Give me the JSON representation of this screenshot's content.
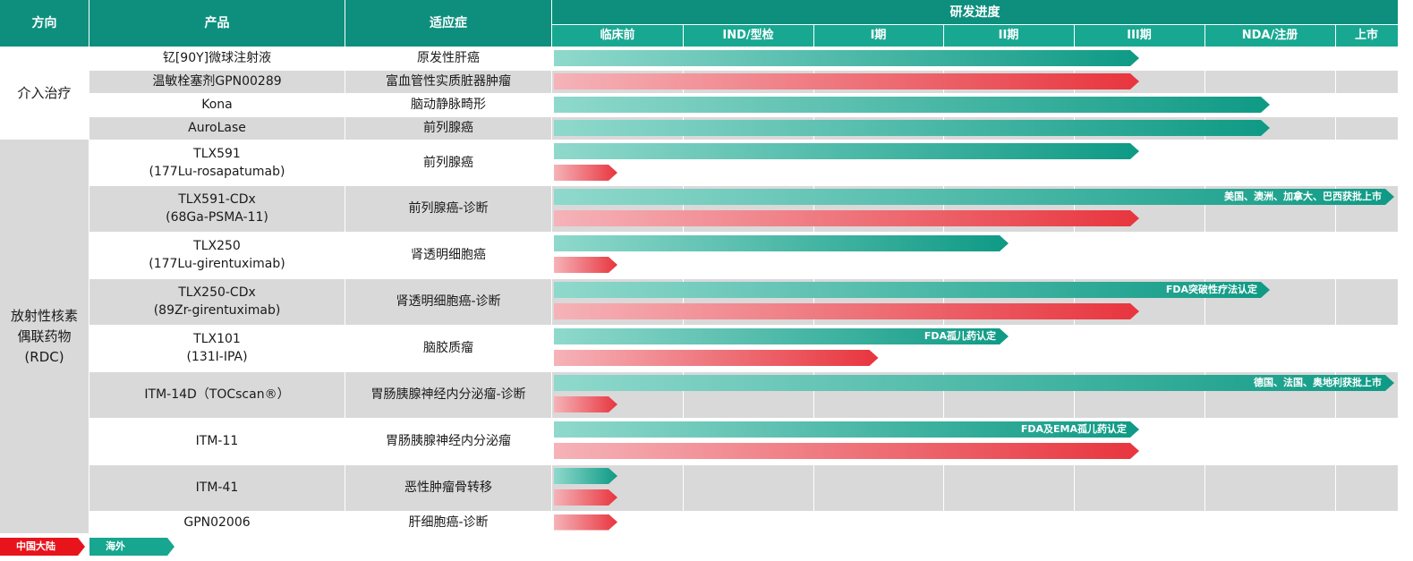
{
  "header": {
    "direction": "方向",
    "product": "产品",
    "indication": "适应症",
    "progress": "研发进度"
  },
  "chart_data": {
    "type": "gantt",
    "phases": [
      "临床前",
      "IND/型检",
      "I期",
      "II期",
      "III期",
      "NDA/注册",
      "上市"
    ],
    "groups": [
      {
        "name": "介入治疗",
        "rows": [
          0,
          1,
          2,
          3
        ]
      },
      {
        "name_lines": [
          "放射性核素",
          "偶联药物",
          "(RDC)"
        ],
        "rows": [
          4,
          5,
          6,
          7,
          8,
          9,
          10,
          11,
          12
        ]
      }
    ],
    "rows": [
      {
        "product": [
          "钇[90Y]微球注射液"
        ],
        "indication": "原发性肝癌",
        "bars": [
          {
            "region": "overseas",
            "end": 4.5,
            "label": ""
          }
        ]
      },
      {
        "product": [
          "温敏栓塞剂GPN00289"
        ],
        "indication": "富血管性实质脏器肿瘤",
        "bars": [
          {
            "region": "china",
            "end": 4.5,
            "label": ""
          }
        ]
      },
      {
        "product": [
          "Kona"
        ],
        "indication": "脑动静脉畸形",
        "bars": [
          {
            "region": "overseas",
            "end": 5.5,
            "label": ""
          }
        ]
      },
      {
        "product": [
          "AuroLase"
        ],
        "indication": "前列腺癌",
        "bars": [
          {
            "region": "overseas",
            "end": 5.5,
            "label": ""
          }
        ]
      },
      {
        "product": [
          "TLX591",
          "(177Lu-rosapatumab)"
        ],
        "indication": "前列腺癌",
        "bars": [
          {
            "region": "overseas",
            "end": 4.5,
            "label": ""
          },
          {
            "region": "china",
            "end": 0.5,
            "label": ""
          }
        ]
      },
      {
        "product": [
          "TLX591-CDx",
          "(68Ga-PSMA-11)"
        ],
        "indication": "前列腺癌-诊断",
        "bars": [
          {
            "region": "overseas",
            "end": 7.0,
            "label": "美国、澳洲、加拿大、巴西获批上市"
          },
          {
            "region": "china",
            "end": 4.5,
            "label": ""
          }
        ]
      },
      {
        "product": [
          "TLX250",
          "(177Lu-girentuximab)"
        ],
        "indication": "肾透明细胞癌",
        "bars": [
          {
            "region": "overseas",
            "end": 3.5,
            "label": ""
          },
          {
            "region": "china",
            "end": 0.5,
            "label": ""
          }
        ]
      },
      {
        "product": [
          "TLX250-CDx",
          "(89Zr-girentuximab)"
        ],
        "indication": "肾透明细胞癌-诊断",
        "bars": [
          {
            "region": "overseas",
            "end": 5.5,
            "label": "FDA突破性疗法认定"
          },
          {
            "region": "china",
            "end": 4.5,
            "label": ""
          }
        ]
      },
      {
        "product": [
          "TLX101",
          "(131I-IPA)"
        ],
        "indication": "脑胶质瘤",
        "bars": [
          {
            "region": "overseas",
            "end": 3.5,
            "label": "FDA孤儿药认定"
          },
          {
            "region": "china",
            "end": 2.5,
            "label": ""
          }
        ]
      },
      {
        "product": [
          "ITM-14D（TOCscan®）"
        ],
        "indication": "胃肠胰腺神经内分泌瘤-诊断",
        "bars": [
          {
            "region": "overseas",
            "end": 7.0,
            "label": "德国、法国、奥地利获批上市"
          },
          {
            "region": "china",
            "end": 0.5,
            "label": ""
          }
        ]
      },
      {
        "product": [
          "ITM-11"
        ],
        "indication": "胃肠胰腺神经内分泌瘤",
        "bars": [
          {
            "region": "overseas",
            "end": 4.5,
            "label": "FDA及EMA孤儿药认定"
          },
          {
            "region": "china",
            "end": 4.5,
            "label": ""
          }
        ]
      },
      {
        "product": [
          "ITM-41"
        ],
        "indication": "恶性肿瘤骨转移",
        "bars": [
          {
            "region": "overseas",
            "end": 0.5,
            "label": ""
          },
          {
            "region": "china",
            "end": 0.5,
            "label": ""
          }
        ]
      },
      {
        "product": [
          "GPN02006"
        ],
        "indication": "肝细胞癌-诊断",
        "bars": [
          {
            "region": "china",
            "end": 0.5,
            "label": ""
          }
        ]
      }
    ],
    "legend": [
      {
        "region": "china",
        "label": "中国大陆"
      },
      {
        "region": "overseas",
        "label": "海外"
      }
    ]
  },
  "colors": {
    "header_bg": "#0e8f7e",
    "phase_bg": "#18a892",
    "row_white": "#ffffff",
    "row_grey": "#d9d9d9",
    "overseas_start": "#8fd9cc",
    "overseas_end": "#0e9a85",
    "china_start": "#f5b3b8",
    "china_end": "#e8353e",
    "legend_china": "#e8141c",
    "legend_overseas": "#17a68f"
  }
}
